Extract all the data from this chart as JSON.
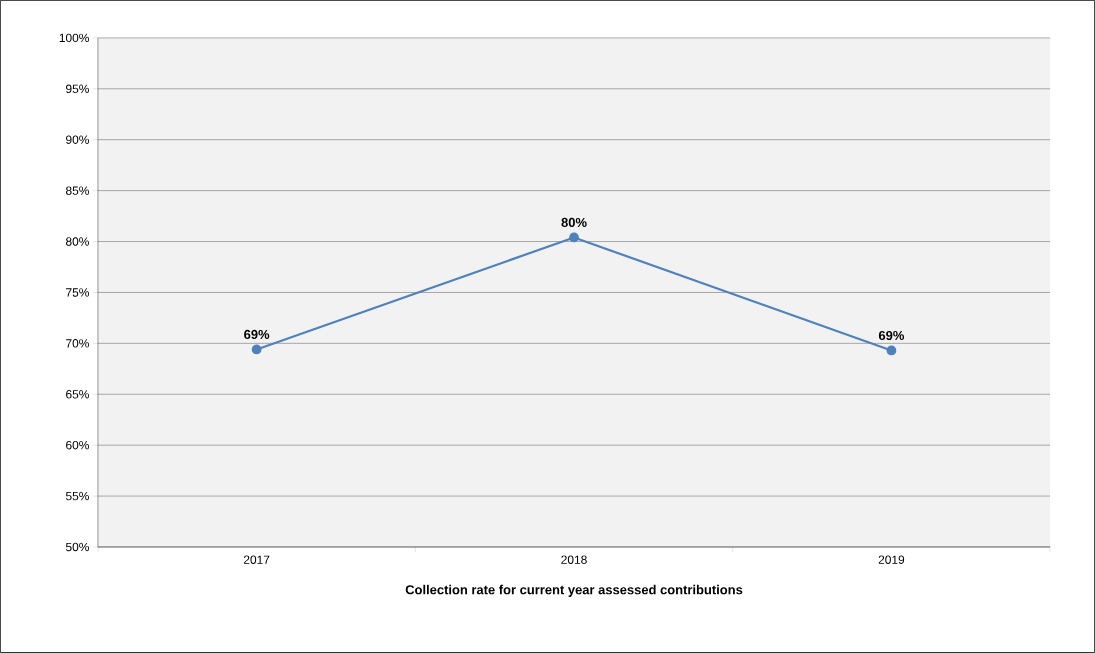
{
  "chart_data": {
    "type": "line",
    "xlabel": "Collection rate for current year assessed contributions",
    "categories": [
      "2017",
      "2018",
      "2019"
    ],
    "series": [
      {
        "color": "#4f81bd",
        "values": [
          69.4,
          80.4,
          69.3
        ],
        "value_labels": [
          "69%",
          "80%",
          "69%"
        ]
      }
    ],
    "ylim": [
      50,
      100
    ],
    "yticks": [
      {
        "value": 50,
        "label": "50%"
      },
      {
        "value": 55,
        "label": "55%"
      },
      {
        "value": 60,
        "label": "60%"
      },
      {
        "value": 65,
        "label": "65%"
      },
      {
        "value": 70,
        "label": "70%"
      },
      {
        "value": 75,
        "label": "75%"
      },
      {
        "value": 80,
        "label": "80%"
      },
      {
        "value": 85,
        "label": "85%"
      },
      {
        "value": 90,
        "label": "90%"
      },
      {
        "value": 95,
        "label": "95%"
      },
      {
        "value": 100,
        "label": "100%"
      }
    ],
    "grid": "y",
    "marker": "circle",
    "line_style": "solid"
  }
}
